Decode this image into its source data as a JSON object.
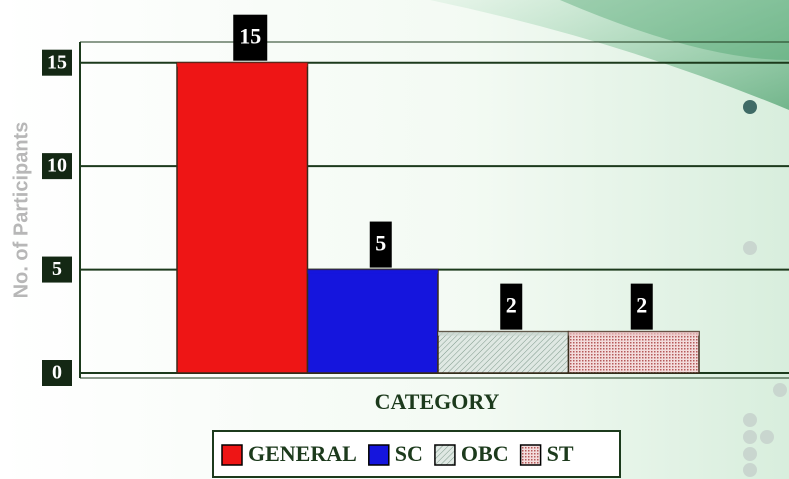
{
  "chart_data": {
    "type": "bar",
    "categories": [
      "GENERAL",
      "SC",
      "OBC",
      "ST"
    ],
    "values": [
      15,
      5,
      2,
      2
    ],
    "colors": [
      "#ee1515",
      "#1515dd",
      "#c9d6cf",
      "#e9c3c3"
    ],
    "y_label": "No. of Participants",
    "x_label": "CATEGORY",
    "ylim": [
      0,
      16
    ],
    "yticks": [
      0,
      5,
      10,
      15
    ],
    "grid": true,
    "legend": "bottom"
  }
}
